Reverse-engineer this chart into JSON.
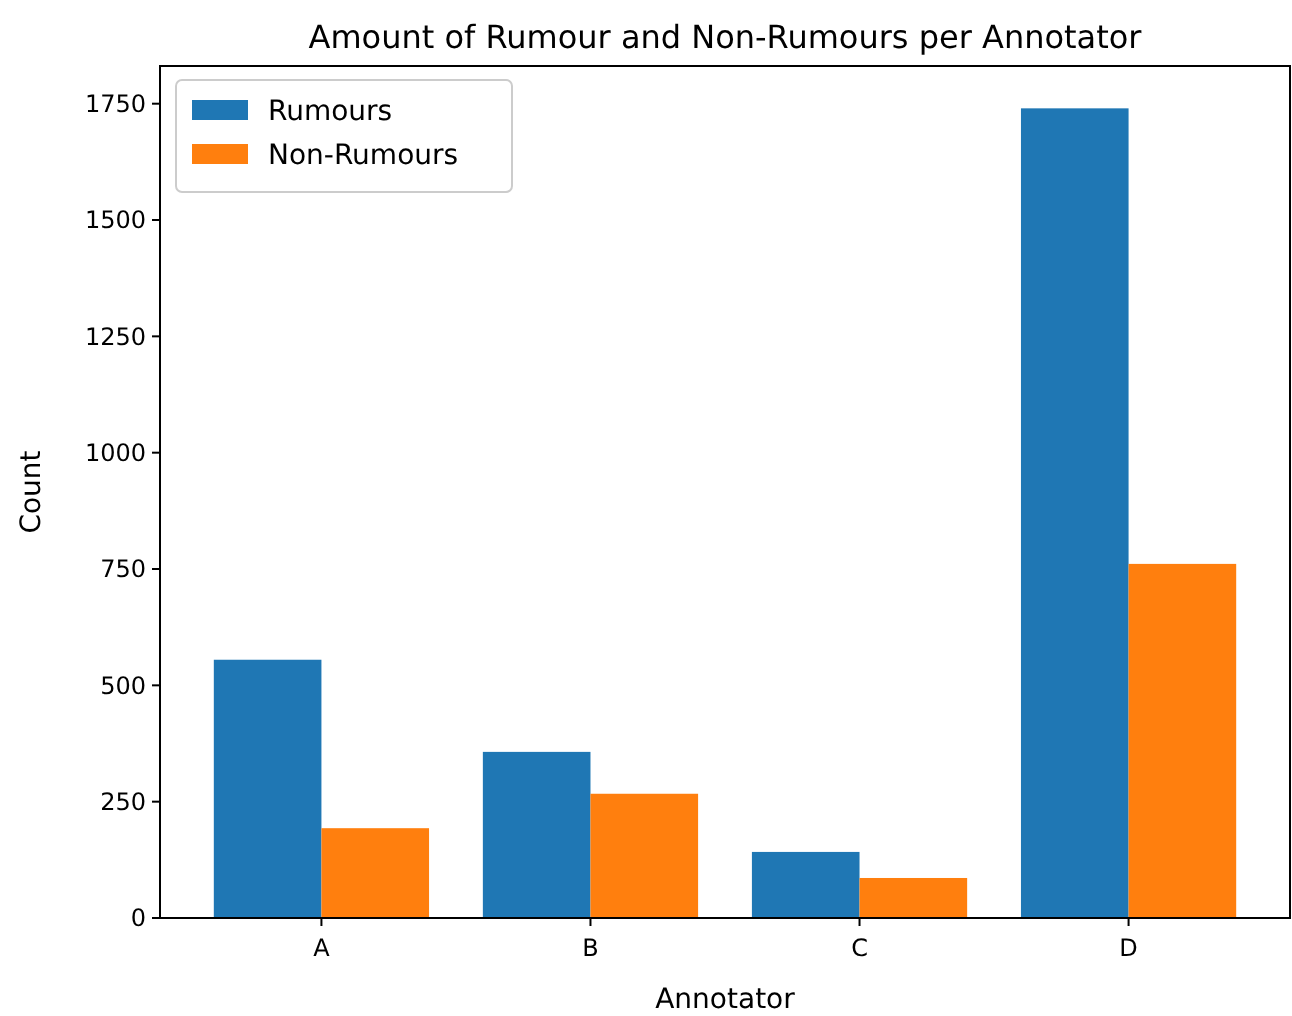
{
  "chart_data": {
    "type": "bar",
    "title": "Amount of Rumour and Non-Rumours per Annotator",
    "xlabel": "Annotator",
    "ylabel": "Count",
    "categories": [
      "A",
      "B",
      "C",
      "D"
    ],
    "series": [
      {
        "name": "Rumours",
        "color": "#1f77b4",
        "values": [
          555,
          357,
          142,
          1740
        ]
      },
      {
        "name": "Non-Rumours",
        "color": "#ff7f0e",
        "values": [
          193,
          267,
          86,
          761
        ]
      }
    ],
    "ylim": [
      0,
      1831
    ],
    "yticks": [
      0,
      250,
      500,
      750,
      1000,
      1250,
      1500,
      1750
    ],
    "legend": "top left"
  }
}
